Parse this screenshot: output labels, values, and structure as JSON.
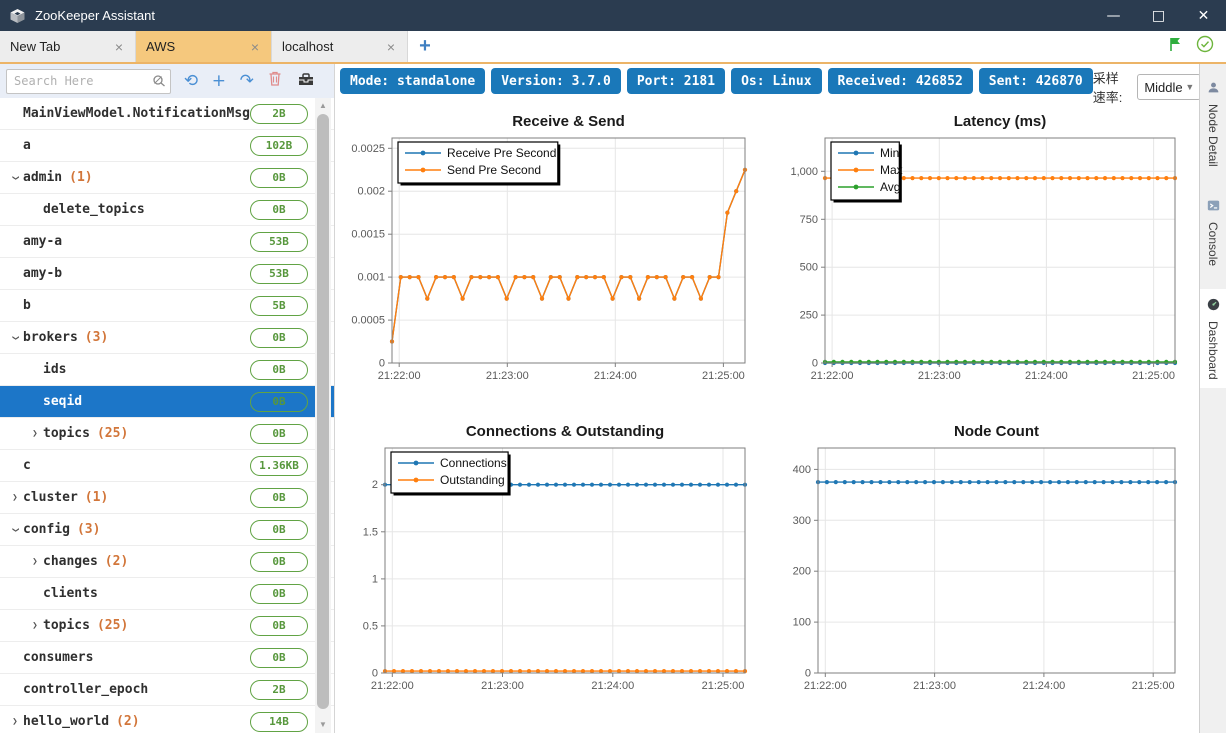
{
  "window": {
    "title": "ZooKeeper Assistant",
    "controls": {
      "minimize": "—",
      "maximize": "□",
      "close": "✕"
    }
  },
  "tabs": {
    "items": [
      {
        "label": "New Tab",
        "active": false
      },
      {
        "label": "AWS",
        "active": true
      },
      {
        "label": "localhost",
        "active": false
      }
    ],
    "close_glyph": "×",
    "add_button": "+",
    "action_icons": [
      "flag-icon",
      "check-circle-icon"
    ]
  },
  "sidebar": {
    "search": {
      "placeholder": "Search Here",
      "icon": "search-icon"
    },
    "toolbar_icons": [
      "refresh-icon",
      "add-node-icon",
      "redo-icon",
      "trash-icon",
      "toolbox-icon"
    ],
    "toolbar_glyphs": {
      "refresh": "⟲",
      "add": "+",
      "redo": "↷"
    },
    "tree": [
      {
        "label": "MainViewModel.NotificationMsg = e",
        "count": "",
        "level": 0,
        "state": "leaf",
        "badge": "2B",
        "selected": false
      },
      {
        "label": "a",
        "count": "",
        "level": 0,
        "state": "leaf",
        "badge": "102B",
        "selected": false
      },
      {
        "label": "admin",
        "count": "(1)",
        "level": 0,
        "state": "expanded",
        "badge": "0B",
        "selected": false
      },
      {
        "label": "delete_topics",
        "count": "",
        "level": 1,
        "state": "leaf",
        "badge": "0B",
        "selected": false
      },
      {
        "label": "amy-a",
        "count": "",
        "level": 0,
        "state": "leaf",
        "badge": "53B",
        "selected": false
      },
      {
        "label": "amy-b",
        "count": "",
        "level": 0,
        "state": "leaf",
        "badge": "53B",
        "selected": false
      },
      {
        "label": "b",
        "count": "",
        "level": 0,
        "state": "leaf",
        "badge": "5B",
        "selected": false
      },
      {
        "label": "brokers",
        "count": "(3)",
        "level": 0,
        "state": "expanded",
        "badge": "0B",
        "selected": false
      },
      {
        "label": "ids",
        "count": "",
        "level": 1,
        "state": "leaf",
        "badge": "0B",
        "selected": false
      },
      {
        "label": "seqid",
        "count": "",
        "level": 1,
        "state": "leaf",
        "badge": "0B",
        "selected": true
      },
      {
        "label": "topics",
        "count": "(25)",
        "level": 1,
        "state": "collapsed",
        "badge": "0B",
        "selected": false
      },
      {
        "label": "c",
        "count": "",
        "level": 0,
        "state": "leaf",
        "badge": "1.36KB",
        "selected": false
      },
      {
        "label": "cluster",
        "count": "(1)",
        "level": 0,
        "state": "collapsed",
        "badge": "0B",
        "selected": false
      },
      {
        "label": "config",
        "count": "(3)",
        "level": 0,
        "state": "expanded",
        "badge": "0B",
        "selected": false
      },
      {
        "label": "changes",
        "count": "(2)",
        "level": 1,
        "state": "collapsed",
        "badge": "0B",
        "selected": false
      },
      {
        "label": "clients",
        "count": "",
        "level": 1,
        "state": "leaf",
        "badge": "0B",
        "selected": false
      },
      {
        "label": "topics",
        "count": "(25)",
        "level": 1,
        "state": "collapsed",
        "badge": "0B",
        "selected": false
      },
      {
        "label": "consumers",
        "count": "",
        "level": 0,
        "state": "leaf",
        "badge": "0B",
        "selected": false
      },
      {
        "label": "controller_epoch",
        "count": "",
        "level": 0,
        "state": "leaf",
        "badge": "2B",
        "selected": false
      },
      {
        "label": "hello_world",
        "count": "(2)",
        "level": 0,
        "state": "collapsed",
        "badge": "14B",
        "selected": false
      }
    ]
  },
  "statusbar": {
    "badges": [
      "Mode: standalone",
      "Version: 3.7.0",
      "Port: 2181",
      "Os: Linux",
      "Received: 426852",
      "Sent: 426870"
    ],
    "sample_rate_label": "采样速率:",
    "sample_rate_value": "Middle",
    "badge_color": "#1a78b9"
  },
  "right_rail": {
    "items": [
      {
        "label": "Node Detail",
        "icon": "user-icon",
        "active": false
      },
      {
        "label": "Console",
        "icon": "console-icon",
        "active": false
      },
      {
        "label": "Dashboard",
        "icon": "dashboard-icon",
        "active": true
      }
    ]
  },
  "colors": {
    "titlebar": "#2b3c50",
    "active_tab": "#f5c87d",
    "tab_underline": "#ecb467",
    "selection_blue": "#1c76c8",
    "badge_green": "#61a344",
    "series_blue": "#1f77b4",
    "series_orange": "#ff7f0e",
    "series_green": "#2ca02c"
  },
  "chart_data": [
    {
      "type": "line",
      "title": "Receive & Send",
      "legend": true,
      "x_tick_labels": [
        "21:22:00",
        "21:23:00",
        "21:24:00",
        "21:25:00"
      ],
      "x_tick_pos": [
        0.0204,
        0.3265,
        0.6327,
        0.9388
      ],
      "y_ticks": [
        {
          "v": 0,
          "label": "0"
        },
        {
          "v": 0.0005,
          "label": "0.0005"
        },
        {
          "v": 0.001,
          "label": "0.001"
        },
        {
          "v": 0.0015,
          "label": "0.0015"
        },
        {
          "v": 0.002,
          "label": "0.002"
        },
        {
          "v": 0.0025,
          "label": "0.0025"
        }
      ],
      "ymax": 0.00262,
      "series": [
        {
          "name": "Receive Pre Second",
          "color": "#1f77b4",
          "values": [
            0.00025,
            0.001,
            0.001,
            0.001,
            0.00075,
            0.001,
            0.001,
            0.001,
            0.00075,
            0.001,
            0.001,
            0.001,
            0.001,
            0.00075,
            0.001,
            0.001,
            0.001,
            0.00075,
            0.001,
            0.001,
            0.00075,
            0.001,
            0.001,
            0.001,
            0.001,
            0.00075,
            0.001,
            0.001,
            0.00075,
            0.001,
            0.001,
            0.001,
            0.00075,
            0.001,
            0.001,
            0.00075,
            0.001,
            0.001,
            0.00175,
            0.002,
            0.00225
          ]
        },
        {
          "name": "Send Pre Second",
          "color": "#ff7f0e",
          "values": [
            0.00025,
            0.001,
            0.001,
            0.001,
            0.00075,
            0.001,
            0.001,
            0.001,
            0.00075,
            0.001,
            0.001,
            0.001,
            0.001,
            0.00075,
            0.001,
            0.001,
            0.001,
            0.00075,
            0.001,
            0.001,
            0.00075,
            0.001,
            0.001,
            0.001,
            0.001,
            0.00075,
            0.001,
            0.001,
            0.00075,
            0.001,
            0.001,
            0.001,
            0.00075,
            0.001,
            0.001,
            0.00075,
            0.001,
            0.001,
            0.00175,
            0.002,
            0.00225
          ]
        }
      ]
    },
    {
      "type": "line",
      "title": "Latency (ms)",
      "legend": true,
      "x_tick_labels": [
        "21:22:00",
        "21:23:00",
        "21:24:00",
        "21:25:00"
      ],
      "x_tick_pos": [
        0.0204,
        0.3265,
        0.6327,
        0.9388
      ],
      "y_ticks": [
        {
          "v": 0,
          "label": "0"
        },
        {
          "v": 250,
          "label": "250"
        },
        {
          "v": 500,
          "label": "500"
        },
        {
          "v": 750,
          "label": "750"
        },
        {
          "v": 1000,
          "label": "1,000"
        }
      ],
      "ymax": 1174,
      "series": [
        {
          "name": "Min",
          "color": "#1f77b4",
          "flat": 0,
          "points": 41
        },
        {
          "name": "Max",
          "color": "#ff7f0e",
          "flat": 965,
          "points": 41
        },
        {
          "name": "Avg",
          "color": "#2ca02c",
          "flat": 6,
          "points": 41
        }
      ]
    },
    {
      "type": "line",
      "title": "Connections & Outstanding",
      "legend": true,
      "x_tick_labels": [
        "21:22:00",
        "21:23:00",
        "21:24:00",
        "21:25:00"
      ],
      "x_tick_pos": [
        0.0204,
        0.3265,
        0.6327,
        0.9388
      ],
      "y_ticks": [
        {
          "v": 0,
          "label": "0"
        },
        {
          "v": 0.5,
          "label": "0.5"
        },
        {
          "v": 1,
          "label": "1"
        },
        {
          "v": 1.5,
          "label": "1.5"
        },
        {
          "v": 2,
          "label": "2"
        }
      ],
      "ymax": 2.39,
      "series": [
        {
          "name": "Connections",
          "color": "#1f77b4",
          "flat": 2,
          "points": 41
        },
        {
          "name": "Outstanding",
          "color": "#ff7f0e",
          "flat": 0.02,
          "points": 41
        }
      ]
    },
    {
      "type": "line",
      "title": "Node Count",
      "legend": false,
      "x_tick_labels": [
        "21:22:00",
        "21:23:00",
        "21:24:00",
        "21:25:00"
      ],
      "x_tick_pos": [
        0.0204,
        0.3265,
        0.6327,
        0.9388
      ],
      "y_ticks": [
        {
          "v": 0,
          "label": "0"
        },
        {
          "v": 100,
          "label": "100"
        },
        {
          "v": 200,
          "label": "200"
        },
        {
          "v": 300,
          "label": "300"
        },
        {
          "v": 400,
          "label": "400"
        }
      ],
      "ymax": 442,
      "series": [
        {
          "name": "Node Count",
          "color": "#1f77b4",
          "flat": 375,
          "points": 41
        }
      ]
    }
  ]
}
